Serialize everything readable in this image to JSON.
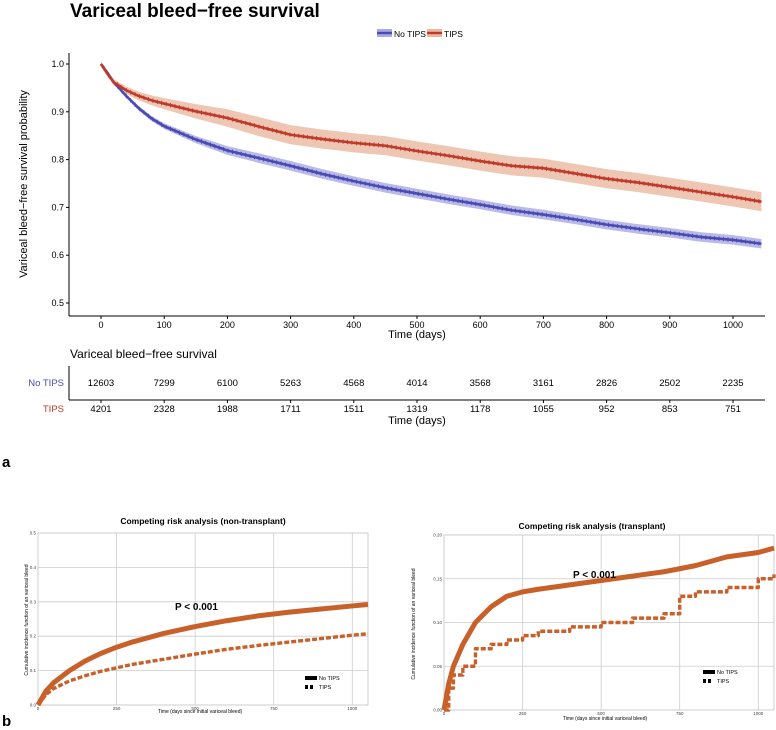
{
  "panel_labels": {
    "a": "a",
    "b": "b"
  },
  "colors": {
    "no_tips": "#4a4ab5",
    "no_tips_band": "#a9a9e0",
    "tips": "#c0392b",
    "tips_band": "#e8b9a0",
    "competing": "#c8602a",
    "grid": "#cccccc",
    "panel_bg": "#ffffff"
  },
  "chart_data": [
    {
      "id": "survival",
      "type": "line",
      "title": "Variceal bleed−free survival",
      "xlabel": "Time (days)",
      "ylabel": "Variceal bleed−free survival probability",
      "xlim": [
        -30,
        1045
      ],
      "ylim": [
        0.47,
        1.03
      ],
      "xticks": [
        0,
        100,
        200,
        300,
        400,
        500,
        600,
        700,
        800,
        900,
        1000
      ],
      "yticks": [
        0.5,
        0.6,
        0.7,
        0.8,
        0.9,
        1.0
      ],
      "ytick_labels": [
        "0.5",
        "0.6",
        "0.7",
        "0.8",
        "0.9",
        "1.0"
      ],
      "legend": "top-center",
      "grid": false,
      "series": [
        {
          "name": "No TIPS",
          "x": [
            0,
            10,
            20,
            40,
            60,
            80,
            100,
            150,
            200,
            250,
            300,
            350,
            400,
            450,
            500,
            550,
            600,
            650,
            700,
            750,
            800,
            850,
            900,
            950,
            1000,
            1045
          ],
          "y": [
            1.0,
            0.982,
            0.962,
            0.933,
            0.907,
            0.886,
            0.87,
            0.842,
            0.819,
            0.803,
            0.787,
            0.77,
            0.755,
            0.741,
            0.729,
            0.717,
            0.706,
            0.694,
            0.685,
            0.675,
            0.664,
            0.655,
            0.647,
            0.638,
            0.632,
            0.624
          ],
          "band": 0.01
        },
        {
          "name": "TIPS",
          "x": [
            0,
            10,
            20,
            40,
            60,
            80,
            100,
            150,
            200,
            250,
            300,
            350,
            400,
            450,
            500,
            550,
            600,
            650,
            700,
            750,
            800,
            850,
            900,
            950,
            1000,
            1045
          ],
          "y": [
            1.0,
            0.98,
            0.962,
            0.945,
            0.933,
            0.924,
            0.917,
            0.901,
            0.887,
            0.869,
            0.852,
            0.843,
            0.835,
            0.829,
            0.818,
            0.808,
            0.797,
            0.787,
            0.782,
            0.771,
            0.76,
            0.752,
            0.742,
            0.732,
            0.722,
            0.712
          ],
          "band": 0.02
        }
      ]
    },
    {
      "id": "risk_table",
      "type": "table",
      "title": "Variceal bleed−free survival",
      "xlabel": "Time (days)",
      "xticks": [
        0,
        100,
        200,
        300,
        400,
        500,
        600,
        700,
        800,
        900,
        1000
      ],
      "rows": [
        {
          "name": "No TIPS",
          "values": [
            12603,
            7299,
            6100,
            5263,
            4568,
            4014,
            3568,
            3161,
            2826,
            2502,
            2235
          ]
        },
        {
          "name": "TIPS",
          "values": [
            4201,
            2328,
            1988,
            1711,
            1511,
            1319,
            1178,
            1055,
            952,
            853,
            751
          ]
        }
      ]
    },
    {
      "id": "cr_nontransplant",
      "type": "line",
      "title": "Competing risk analysis (non-transplant)",
      "xlabel": "Time (days since initial variceal bleed)",
      "ylabel": "Cumulative incidence function of an variceal bleed",
      "xlim": [
        0,
        1050
      ],
      "ylim": [
        0,
        0.5
      ],
      "xticks": [
        0,
        250,
        500,
        750,
        1000
      ],
      "xtick_labels": [
        "0",
        "250",
        "500",
        "750",
        "1000"
      ],
      "yticks": [
        0.0,
        0.1,
        0.2,
        0.3,
        0.4,
        0.5
      ],
      "ytick_labels": [
        "0.0",
        "0.1",
        "0.2",
        "0.3",
        "0.4",
        "0.5"
      ],
      "annotation": "P < 0.001",
      "legend": "bottom-right",
      "series": [
        {
          "name": "No TIPS",
          "style": "solid",
          "x": [
            0,
            25,
            50,
            100,
            150,
            200,
            250,
            300,
            400,
            500,
            600,
            700,
            800,
            900,
            1000,
            1050
          ],
          "y": [
            0.0,
            0.04,
            0.065,
            0.1,
            0.128,
            0.15,
            0.168,
            0.183,
            0.208,
            0.228,
            0.245,
            0.259,
            0.27,
            0.279,
            0.288,
            0.292
          ]
        },
        {
          "name": "TIPS",
          "style": "dashed",
          "x": [
            0,
            25,
            50,
            100,
            150,
            200,
            250,
            300,
            400,
            500,
            600,
            700,
            800,
            900,
            1000,
            1050
          ],
          "y": [
            0.0,
            0.03,
            0.048,
            0.07,
            0.085,
            0.098,
            0.108,
            0.118,
            0.133,
            0.148,
            0.162,
            0.173,
            0.183,
            0.193,
            0.203,
            0.207
          ]
        }
      ]
    },
    {
      "id": "cr_transplant",
      "type": "line",
      "title": "Competing risk analysis (transplant)",
      "xlabel": "Time (days since initial variceal bleed)",
      "ylabel": "Cumulative incidence function of an variceal bleed",
      "xlim": [
        0,
        1050
      ],
      "ylim": [
        0,
        0.2
      ],
      "xticks": [
        0,
        250,
        500,
        750,
        1000
      ],
      "xtick_labels": [
        "0",
        "250",
        "500",
        "750",
        "1000"
      ],
      "yticks": [
        0.0,
        0.05,
        0.1,
        0.15,
        0.2
      ],
      "ytick_labels": [
        "0.00",
        "0.05",
        "0.10",
        "0.15",
        "0.20"
      ],
      "annotation": "P < 0.001",
      "legend": "bottom-right",
      "series": [
        {
          "name": "No TIPS",
          "style": "solid",
          "x": [
            0,
            15,
            30,
            60,
            100,
            150,
            200,
            250,
            300,
            400,
            500,
            600,
            700,
            800,
            900,
            1000,
            1050
          ],
          "y": [
            0.0,
            0.03,
            0.05,
            0.075,
            0.1,
            0.118,
            0.13,
            0.135,
            0.138,
            0.143,
            0.148,
            0.153,
            0.158,
            0.165,
            0.175,
            0.18,
            0.185
          ]
        },
        {
          "name": "TIPS",
          "style": "dashed",
          "x": [
            0,
            15,
            30,
            60,
            100,
            150,
            200,
            250,
            300,
            400,
            500,
            600,
            700,
            750,
            800,
            900,
            1000,
            1050
          ],
          "y": [
            0.0,
            0.025,
            0.04,
            0.05,
            0.07,
            0.075,
            0.08,
            0.085,
            0.09,
            0.095,
            0.1,
            0.105,
            0.11,
            0.13,
            0.135,
            0.14,
            0.15,
            0.155
          ]
        }
      ]
    }
  ]
}
